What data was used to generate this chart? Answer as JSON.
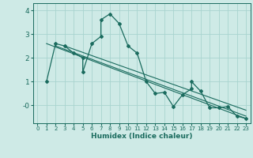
{
  "xlabel": "Humidex (Indice chaleur)",
  "bg_color": "#ceeae6",
  "grid_color": "#a8d4cf",
  "line_color": "#1a6b5e",
  "marker_color": "#1a6b5e",
  "xlim": [
    -0.5,
    23.5
  ],
  "ylim": [
    -0.75,
    4.3
  ],
  "series": [
    [
      1,
      1.0
    ],
    [
      2,
      2.6
    ],
    [
      3,
      2.5
    ],
    [
      4,
      2.2
    ],
    [
      5,
      2.0
    ],
    [
      5,
      1.4
    ],
    [
      6,
      2.6
    ],
    [
      7,
      2.9
    ],
    [
      7,
      3.6
    ],
    [
      8,
      3.85
    ],
    [
      9,
      3.45
    ],
    [
      10,
      2.5
    ],
    [
      11,
      2.2
    ],
    [
      12,
      1.0
    ],
    [
      13,
      0.5
    ],
    [
      14,
      0.55
    ],
    [
      15,
      -0.05
    ],
    [
      16,
      0.45
    ],
    [
      17,
      0.7
    ],
    [
      17,
      1.0
    ],
    [
      18,
      0.6
    ],
    [
      19,
      -0.1
    ],
    [
      20,
      -0.1
    ],
    [
      21,
      -0.05
    ],
    [
      22,
      -0.45
    ],
    [
      23,
      -0.55
    ]
  ],
  "trend_lines": [
    {
      "x": [
        1,
        23
      ],
      "y": [
        2.6,
        -0.55
      ]
    },
    {
      "x": [
        2,
        23
      ],
      "y": [
        2.5,
        -0.45
      ]
    },
    {
      "x": [
        3,
        23
      ],
      "y": [
        2.5,
        -0.2
      ]
    }
  ]
}
